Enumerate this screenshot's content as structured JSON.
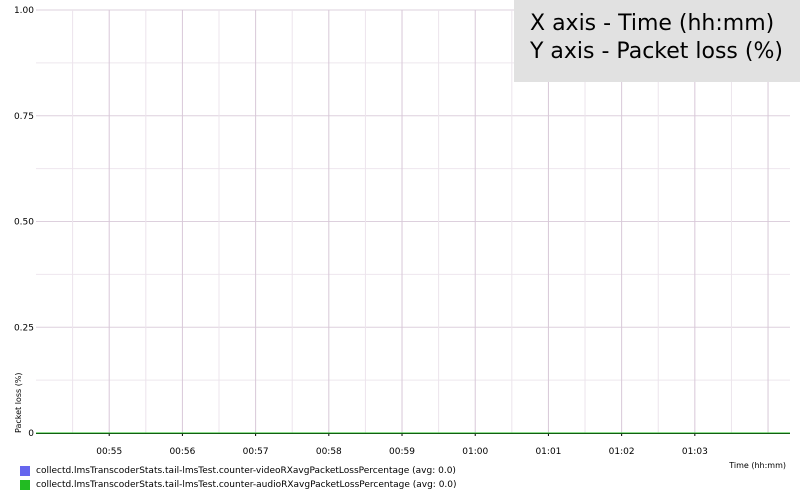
{
  "overlay": {
    "line1": "X axis - Time (hh:mm)",
    "line2": "Y axis - Packet loss (%)"
  },
  "chart_data": {
    "type": "line",
    "xlabel": "Time (hh:mm)",
    "ylabel": "Packet loss (%)",
    "ylim": [
      0,
      1
    ],
    "y_ticks": [
      "0",
      "0.25",
      "0.50",
      "0.75",
      "1.00"
    ],
    "y_tick_values": [
      0,
      0.25,
      0.5,
      0.75,
      1.0
    ],
    "x_ticks": [
      "00:55",
      "00:56",
      "00:57",
      "00:58",
      "00:59",
      "01:00",
      "01:01",
      "01:02",
      "01:03"
    ],
    "x_range_minutes": [
      54.0,
      64.3
    ],
    "grid": true,
    "legend_position": "bottom-left",
    "series": [
      {
        "name": "collectd.lmsTranscoderStats.tail-lmsTest.counter-videoRXavgPacketLossPercentage (avg: 0.0)",
        "color": "#6666ee",
        "x_minutes": [
          54.0,
          64.3
        ],
        "values": [
          0,
          0
        ]
      },
      {
        "name": "collectd.lmsTranscoderStats.tail-lmsTest.counter-audioRXavgPacketLossPercentage (avg: 0.0)",
        "color": "#22bb22",
        "x_minutes": [
          54.0,
          64.3
        ],
        "values": [
          0,
          0
        ]
      }
    ]
  }
}
